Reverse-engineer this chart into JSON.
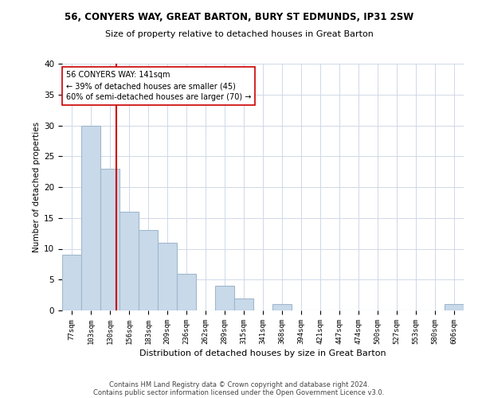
{
  "title1": "56, CONYERS WAY, GREAT BARTON, BURY ST EDMUNDS, IP31 2SW",
  "title2": "Size of property relative to detached houses in Great Barton",
  "xlabel": "Distribution of detached houses by size in Great Barton",
  "ylabel": "Number of detached properties",
  "categories": [
    "77sqm",
    "103sqm",
    "130sqm",
    "156sqm",
    "183sqm",
    "209sqm",
    "236sqm",
    "262sqm",
    "289sqm",
    "315sqm",
    "341sqm",
    "368sqm",
    "394sqm",
    "421sqm",
    "447sqm",
    "474sqm",
    "500sqm",
    "527sqm",
    "553sqm",
    "580sqm",
    "606sqm"
  ],
  "values": [
    9,
    30,
    23,
    16,
    13,
    11,
    6,
    0,
    4,
    2,
    0,
    1,
    0,
    0,
    0,
    0,
    0,
    0,
    0,
    0,
    1
  ],
  "bar_color": "#c8d9ea",
  "bar_edge_color": "#a0b8cc",
  "bar_linewidth": 0.8,
  "vline_x": 2.35,
  "vline_color": "#cc0000",
  "annotation_line1": "56 CONYERS WAY: 141sqm",
  "annotation_line2": "← 39% of detached houses are smaller (45)",
  "annotation_line3": "60% of semi-detached houses are larger (70) →",
  "annotation_box_color": "#ffffff",
  "annotation_box_edge": "#cc0000",
  "ylim": [
    0,
    40
  ],
  "yticks": [
    0,
    5,
    10,
    15,
    20,
    25,
    30,
    35,
    40
  ],
  "footer1": "Contains HM Land Registry data © Crown copyright and database right 2024.",
  "footer2": "Contains public sector information licensed under the Open Government Licence v3.0.",
  "bg_color": "#ffffff",
  "grid_color": "#d0d8e8"
}
